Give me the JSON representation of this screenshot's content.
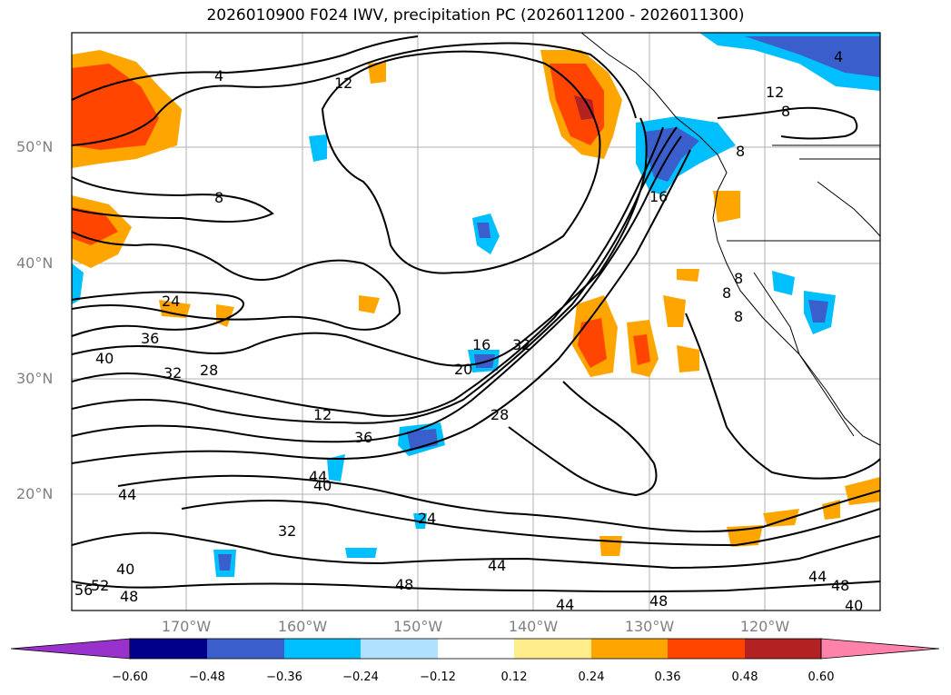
{
  "title": "2026010900 F024 IWV, precipitation PC (2026011200 - 2026011300)",
  "lat_labels": [
    "50°N",
    "40°N",
    "30°N",
    "20°N"
  ],
  "lon_labels": [
    "170°W",
    "160°W",
    "150°W",
    "140°W",
    "130°W",
    "120°W"
  ],
  "colorbar": {
    "ticks": [
      "−0.60",
      "−0.48",
      "−0.36",
      "−0.24",
      "−0.12",
      "0.12",
      "0.24",
      "0.36",
      "0.48",
      "0.60"
    ],
    "colors": [
      "#9932cc",
      "#00008b",
      "#3a5fcd",
      "#00bfff",
      "#b0e2ff",
      "#ffffff",
      "#ffec8b",
      "#ffa500",
      "#ff4500",
      "#b22222",
      "#ff82ab"
    ]
  },
  "contour_labels": [
    "4",
    "12",
    "8",
    "12",
    "8",
    "4",
    "8",
    "16",
    "8",
    "8",
    "8",
    "24",
    "36",
    "40",
    "32",
    "28",
    "16",
    "20",
    "32",
    "12",
    "36",
    "28",
    "44",
    "40",
    "44",
    "32",
    "24",
    "40",
    "52",
    "56",
    "48",
    "48",
    "44",
    "44",
    "48",
    "44",
    "48",
    "40"
  ]
}
